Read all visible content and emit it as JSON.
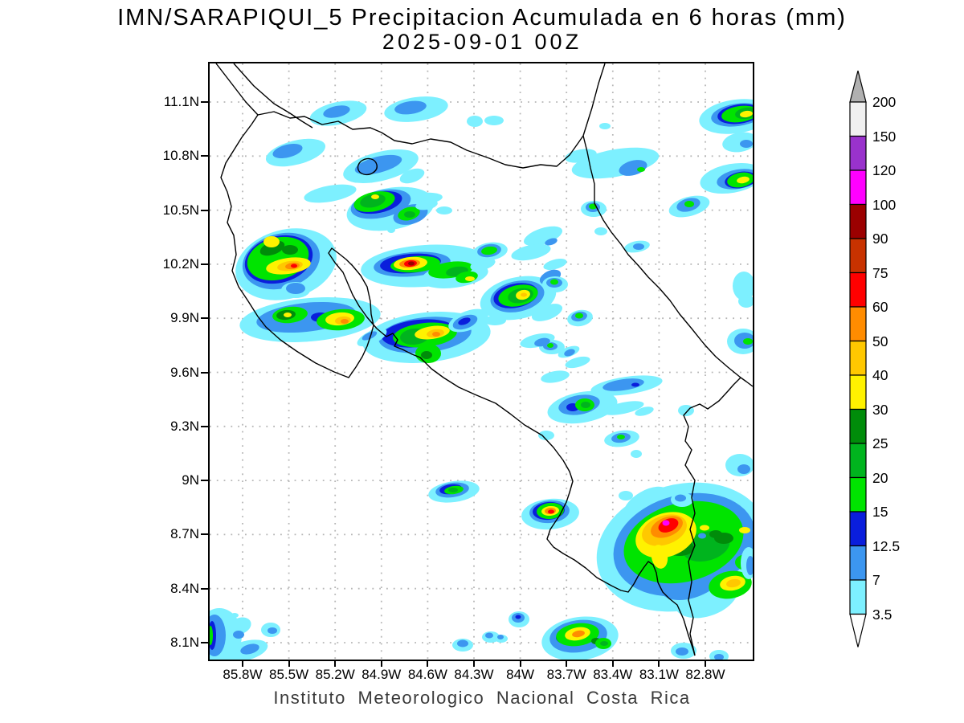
{
  "header": {
    "title": "IMN/SARAPIQUI_5 Precipitacion Acumulada en 6 horas (mm)",
    "datetime": "2025-09-01 00Z"
  },
  "footer": {
    "text": "Instituto Meteorologico Nacional Costa Rica"
  },
  "map": {
    "lat_ticks": [
      "11.1N",
      "10.8N",
      "10.5N",
      "10.2N",
      "9.9N",
      "9.6N",
      "9.3N",
      "9N",
      "8.7N",
      "8.4N",
      "8.1N"
    ],
    "lon_ticks": [
      "85.8W",
      "85.5W",
      "85.2W",
      "84.9W",
      "84.6W",
      "84.3W",
      "84W",
      "83.7W",
      "83.4W",
      "83.1W",
      "82.8W"
    ]
  },
  "colorbar": {
    "labels": [
      "200",
      "150",
      "120",
      "100",
      "90",
      "75",
      "60",
      "50",
      "40",
      "30",
      "25",
      "20",
      "15",
      "12.5",
      "7",
      "3.5"
    ],
    "segment_colors": [
      "#f0f0f0",
      "#9932cc",
      "#ff00ff",
      "#9b0000",
      "#c83200",
      "#ff0000",
      "#ff8c00",
      "#ffc800",
      "#fff200",
      "#008c0a",
      "#00b41e",
      "#00e400",
      "#0a1edc",
      "#3c96f0",
      "#7df0ff"
    ],
    "over_arrow_color": "#b0b0b0",
    "under_arrow_color": "#ffffff"
  },
  "chart_data": {
    "type": "heatmap",
    "title": "IMN/SARAPIQUI_5 Precipitacion Acumulada en 6 horas (mm)",
    "subtitle": "2025-09-01 00Z",
    "units": "mm",
    "x_tick_labels": [
      "85.8W",
      "85.5W",
      "85.2W",
      "84.9W",
      "84.6W",
      "84.3W",
      "84W",
      "83.7W",
      "83.4W",
      "83.1W",
      "82.8W"
    ],
    "y_tick_labels": [
      "11.1N",
      "10.8N",
      "10.5N",
      "10.2N",
      "9.9N",
      "9.6N",
      "9.3N",
      "9N",
      "8.7N",
      "8.4N",
      "8.1N"
    ],
    "levels_mm": [
      3.5,
      7,
      12.5,
      15,
      20,
      25,
      30,
      40,
      50,
      60,
      75,
      90,
      100,
      120,
      150,
      200
    ],
    "legend_position": "right",
    "grid": "dotted",
    "region": "Costa Rica",
    "notable_maxima": [
      {
        "lon": "85.5W",
        "lat": "10.2N",
        "peak_mm": "60-75"
      },
      {
        "lon": "84.6W",
        "lat": "10.2N",
        "peak_mm": "90-100"
      },
      {
        "lon": "85.3W",
        "lat": "9.9N",
        "peak_mm": "60-75"
      },
      {
        "lon": "84.6W",
        "lat": "9.8N",
        "peak_mm": "50-60"
      },
      {
        "lon": "84.0W",
        "lat": "10.0N",
        "peak_mm": "40-50"
      },
      {
        "lon": "84.7W",
        "lat": "10.5N",
        "peak_mm": "30-40"
      },
      {
        "lon": "83.85W",
        "lat": "8.8N",
        "peak_mm": "60-75"
      },
      {
        "lon": "83.15W",
        "lat": "8.7N",
        "peak_mm": "100-120"
      },
      {
        "lon": "83.7W",
        "lat": "8.1N",
        "peak_mm": "50-60"
      },
      {
        "lon": "82.9W",
        "lat": "10.65N",
        "peak_mm": "30-40"
      },
      {
        "lon": "83.0W",
        "lat": "11.0N",
        "peak_mm": "30-40"
      }
    ],
    "source": "Instituto Meteorologico Nacional Costa Rica"
  }
}
